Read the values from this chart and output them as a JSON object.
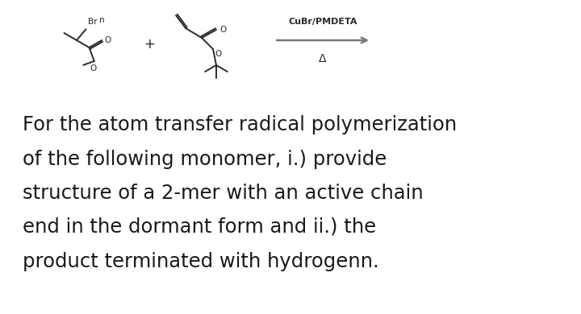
{
  "background_color": "#ffffff",
  "text_lines": [
    "For the atom transfer radical polymerization",
    "of the following monomer, i.) provide",
    "structure of a 2-mer with an active chain",
    "end in the dormant form and ii.) the",
    "product terminated with hydrogenn."
  ],
  "text_fontsize": 17.5,
  "text_color": "#1a1a1a",
  "cubr_label": "CuBr/PMDETA",
  "delta_label": "Δ",
  "arrow_color": "#777777",
  "line_color": "#2a2a2a",
  "plus_sign": "+",
  "n_label": "n",
  "br_label": "Br"
}
